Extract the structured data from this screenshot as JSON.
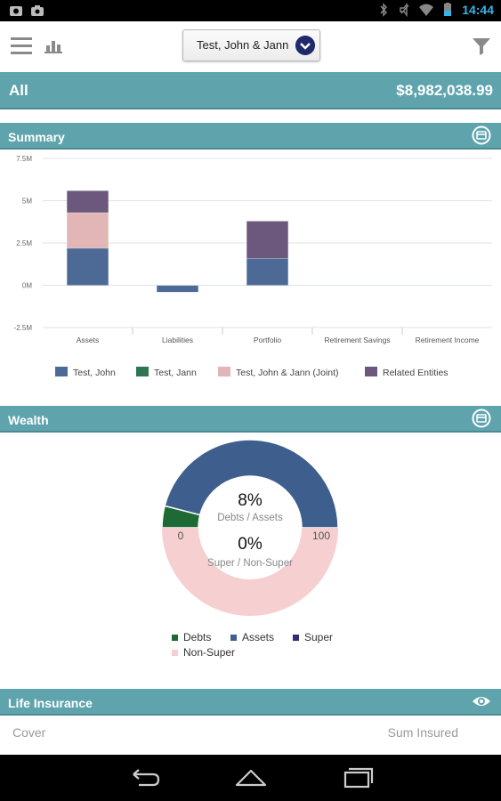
{
  "status_bar": {
    "time": "14:44",
    "icons": [
      "screenshot-icon",
      "camera-icon",
      "bluetooth-icon",
      "mute-icon",
      "wifi-icon",
      "battery-icon"
    ]
  },
  "toolbar": {
    "client_selector": "Test, John & Jann",
    "icons": [
      "menu-icon",
      "chart-icon",
      "filter-icon"
    ]
  },
  "all": {
    "label": "All",
    "total": "$8,982,038.99"
  },
  "summary": {
    "title": "Summary",
    "chart_data": {
      "type": "bar",
      "stacked": true,
      "categories": [
        "Assets",
        "Liabilities",
        "Portfolio",
        "Retirement Savings",
        "Retirement Income"
      ],
      "ytick_labels": [
        "7.5M",
        "5M",
        "2.5M",
        "0M",
        "-2.5M"
      ],
      "ylim": [
        -2.5,
        7.5
      ],
      "series": [
        {
          "name": "Test, John",
          "color": "#4d6a96",
          "values": [
            2.2,
            -0.4,
            1.6,
            0,
            0
          ]
        },
        {
          "name": "Test, Jann",
          "color": "#2e7554",
          "values": [
            0,
            0,
            0,
            0,
            0
          ]
        },
        {
          "name": "Test, John & Jann (Joint)",
          "color": "#e2b5b6",
          "values": [
            2.1,
            0,
            0,
            0,
            0
          ]
        },
        {
          "name": "Related Entities",
          "color": "#6c587c",
          "values": [
            1.3,
            0,
            2.2,
            0,
            0
          ]
        }
      ],
      "legend_position": "bottom"
    }
  },
  "wealth": {
    "title": "Wealth",
    "chart_data": {
      "type": "pie",
      "gauges": [
        {
          "label": "Debts / Assets",
          "value_label": "8%",
          "segments": [
            {
              "name": "Debts",
              "value": 8,
              "color": "#1d6a35"
            },
            {
              "name": "Assets",
              "value": 92,
              "color": "#3e5f8e"
            }
          ]
        },
        {
          "label": "Super / Non-Super",
          "value_label": "0%",
          "segments": [
            {
              "name": "Super",
              "value": 0,
              "color": "#3b2a78"
            },
            {
              "name": "Non-Super",
              "value": 100,
              "color": "#f6cfd0"
            }
          ]
        }
      ],
      "scale_min": "0",
      "scale_max": "100",
      "legend": [
        {
          "name": "Debts",
          "color": "#1d6a35"
        },
        {
          "name": "Assets",
          "color": "#3e5f8e"
        },
        {
          "name": "Super",
          "color": "#3b2a78"
        },
        {
          "name": "Non-Super",
          "color": "#f6cfd0"
        }
      ]
    }
  },
  "life_insurance": {
    "title": "Life Insurance",
    "columns": [
      "Cover",
      "Sum Insured"
    ]
  },
  "nav": {
    "icons": [
      "back-icon",
      "home-icon",
      "recents-icon"
    ]
  },
  "colors": {
    "accent": "#5fa4ad",
    "select_chevron": "#1f2a6b"
  }
}
